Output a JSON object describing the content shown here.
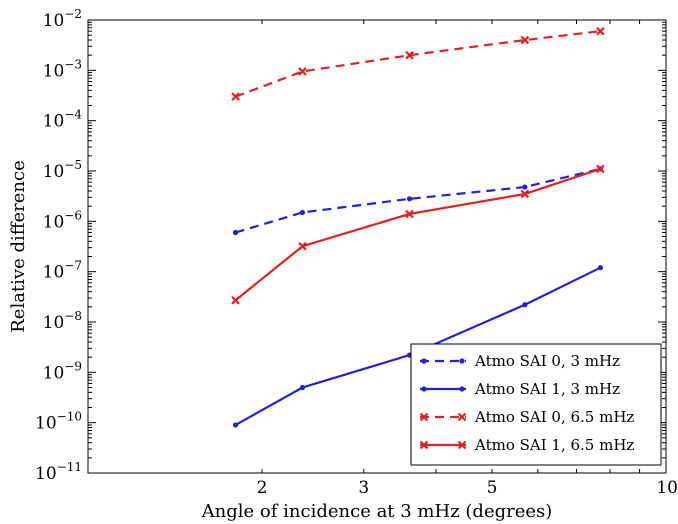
{
  "chart_data": {
    "type": "line",
    "xscale": "log",
    "yscale": "log",
    "xlim": [
      1.0,
      10.0
    ],
    "ylim": [
      1e-11,
      0.01
    ],
    "xlabel": "Angle of incidence at 3 mHz (degrees)",
    "ylabel": "Relative difference",
    "x_ticks": [
      {
        "value": 2,
        "label": "2"
      },
      {
        "value": 3,
        "label": "3"
      },
      {
        "value": 5,
        "label": "5"
      },
      {
        "value": 10,
        "label": "10"
      }
    ],
    "y_ticks": [
      {
        "value": 1e-11,
        "base": "10",
        "exp": "−11"
      },
      {
        "value": 1e-10,
        "base": "10",
        "exp": "−10"
      },
      {
        "value": 1e-09,
        "base": "10",
        "exp": "−9"
      },
      {
        "value": 1e-08,
        "base": "10",
        "exp": "−8"
      },
      {
        "value": 1e-07,
        "base": "10",
        "exp": "−7"
      },
      {
        "value": 1e-06,
        "base": "10",
        "exp": "−6"
      },
      {
        "value": 1e-05,
        "base": "10",
        "exp": "−5"
      },
      {
        "value": 0.0001,
        "base": "10",
        "exp": "−4"
      },
      {
        "value": 0.001,
        "base": "10",
        "exp": "−3"
      },
      {
        "value": 0.01,
        "base": "10",
        "exp": "−2"
      }
    ],
    "legend_position": "bottom-right",
    "series": [
      {
        "name": "Atmo SAI 0, 3 mHz",
        "color": "#1f1fe6",
        "linestyle": "dashed",
        "marker": "dot",
        "x": [
          1.8,
          2.35,
          3.6,
          5.7,
          7.7
        ],
        "y": [
          6e-07,
          1.5e-06,
          2.8e-06,
          4.8e-06,
          1.1e-05
        ]
      },
      {
        "name": "Atmo SAI 1, 3 mHz",
        "color": "#1f1fe6",
        "linestyle": "solid",
        "marker": "dot",
        "x": [
          1.8,
          2.35,
          3.6,
          5.7,
          7.7
        ],
        "y": [
          9e-11,
          5e-10,
          2.2e-09,
          2.2e-08,
          1.2e-07
        ]
      },
      {
        "name": "Atmo SAI 0, 6.5 mHz",
        "color": "#e61f1f",
        "linestyle": "dashed",
        "marker": "x",
        "x": [
          1.8,
          2.35,
          3.6,
          5.7,
          7.7
        ],
        "y": [
          0.0003,
          0.00095,
          0.002,
          0.004,
          0.006
        ]
      },
      {
        "name": "Atmo SAI 1, 6.5 mHz",
        "color": "#e61f1f",
        "linestyle": "solid",
        "marker": "x",
        "x": [
          1.8,
          2.35,
          3.6,
          5.7,
          7.7
        ],
        "y": [
          2.7e-08,
          3.2e-07,
          1.4e-06,
          3.5e-06,
          1.1e-05
        ]
      }
    ]
  }
}
